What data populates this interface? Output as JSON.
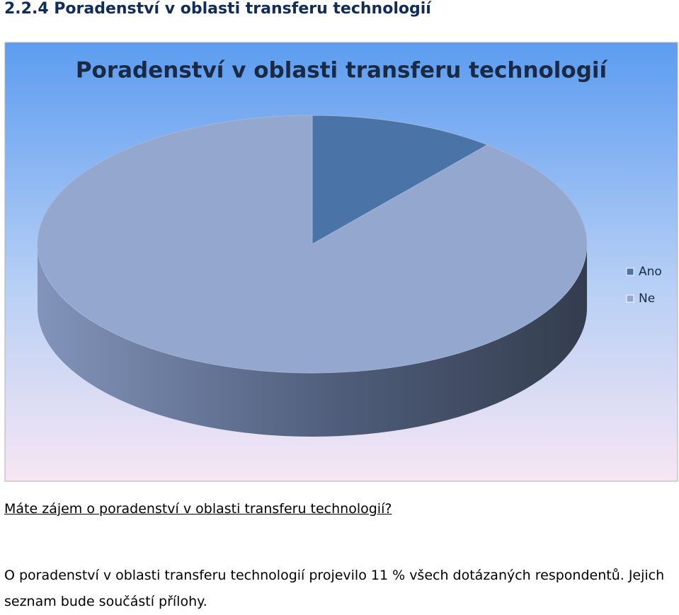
{
  "heading": "2.2.4 Poradenství v oblasti transferu technologií",
  "chart_data": {
    "type": "pie3d",
    "title": "Poradenství v oblasti transferu technologií",
    "categories": [
      "Ano",
      "Ne"
    ],
    "values": [
      11,
      89
    ],
    "colors": [
      "#4a73a8",
      "#94a7cf"
    ],
    "legend": "right"
  },
  "question": "Máte zájem o poradenství v oblasti transferu technologií?",
  "paragraph": "O poradenství v oblasti transferu technologií projevilo 11 % všech dotázaných respondentů. Jejich seznam bude součástí přílohy."
}
